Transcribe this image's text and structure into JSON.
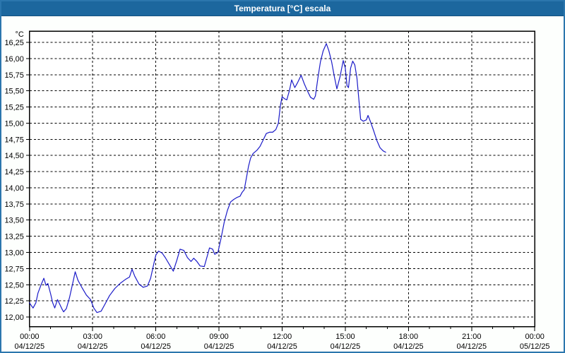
{
  "window": {
    "title": "Temperatura [°C] escala"
  },
  "colors": {
    "titlebar_bg": "#1c679e",
    "titlebar_text": "#ffffff",
    "window_border": "#2b76ad",
    "background": "#fdfffd",
    "plot_background": "#ffffff",
    "grid": "#000000",
    "frame": "#000000",
    "tick_text": "#000000",
    "line": "#1a1ac8"
  },
  "chart_data": {
    "type": "line",
    "title": "Temperatura [°C] escala",
    "legend_position": "none",
    "grid": "dashed",
    "y_axis": {
      "unit_label": "°C",
      "decimal_separator": ",",
      "view_min": 11.85,
      "view_max": 16.43,
      "tick_step": 0.25,
      "tick_values": [
        16.25,
        16.0,
        15.75,
        15.5,
        15.25,
        15.0,
        14.75,
        14.5,
        14.25,
        14.0,
        13.75,
        13.5,
        13.25,
        13.0,
        12.75,
        12.5,
        12.25,
        12.0
      ],
      "tick_labels": [
        "16,25",
        "16,00",
        "15,75",
        "15,50",
        "15,25",
        "15,00",
        "14,75",
        "14,50",
        "14,25",
        "14,00",
        "13,75",
        "13,50",
        "13,25",
        "13,00",
        "12,75",
        "12,50",
        "12,25",
        "12,00"
      ]
    },
    "x_axis": {
      "range_hours": [
        0,
        24
      ],
      "minor_tick_every_hours": 1,
      "tick_hours": [
        0,
        3,
        6,
        9,
        12,
        15,
        18,
        21,
        24
      ],
      "tick_times": [
        "00:00",
        "03:00",
        "06:00",
        "09:00",
        "12:00",
        "15:00",
        "18:00",
        "21:00",
        "00:00"
      ],
      "tick_dates": [
        "04/12/25",
        "04/12/25",
        "04/12/25",
        "04/12/25",
        "04/12/25",
        "04/12/25",
        "04/12/25",
        "04/12/25",
        "05/12/25"
      ]
    },
    "series": [
      {
        "name": "Temperatura",
        "unit": "°C",
        "color": "#1a1ac8",
        "points_format": [
          "hour_decimal",
          "temp_c"
        ],
        "points": [
          [
            0.0,
            12.22
          ],
          [
            0.1,
            12.17
          ],
          [
            0.17,
            12.14
          ],
          [
            0.3,
            12.22
          ],
          [
            0.4,
            12.37
          ],
          [
            0.55,
            12.5
          ],
          [
            0.68,
            12.6
          ],
          [
            0.78,
            12.49
          ],
          [
            0.87,
            12.52
          ],
          [
            1.0,
            12.36
          ],
          [
            1.1,
            12.22
          ],
          [
            1.2,
            12.14
          ],
          [
            1.33,
            12.27
          ],
          [
            1.42,
            12.21
          ],
          [
            1.55,
            12.12
          ],
          [
            1.62,
            12.08
          ],
          [
            1.75,
            12.13
          ],
          [
            1.9,
            12.3
          ],
          [
            2.05,
            12.52
          ],
          [
            2.17,
            12.7
          ],
          [
            2.3,
            12.57
          ],
          [
            2.5,
            12.45
          ],
          [
            2.7,
            12.34
          ],
          [
            2.9,
            12.27
          ],
          [
            3.05,
            12.14
          ],
          [
            3.2,
            12.07
          ],
          [
            3.4,
            12.09
          ],
          [
            3.6,
            12.21
          ],
          [
            3.8,
            12.33
          ],
          [
            4.05,
            12.44
          ],
          [
            4.3,
            12.52
          ],
          [
            4.55,
            12.58
          ],
          [
            4.75,
            12.62
          ],
          [
            4.87,
            12.74
          ],
          [
            5.0,
            12.63
          ],
          [
            5.2,
            12.51
          ],
          [
            5.4,
            12.46
          ],
          [
            5.6,
            12.48
          ],
          [
            5.75,
            12.6
          ],
          [
            5.9,
            12.82
          ],
          [
            6.0,
            12.96
          ],
          [
            6.13,
            13.02
          ],
          [
            6.3,
            12.99
          ],
          [
            6.45,
            12.92
          ],
          [
            6.65,
            12.81
          ],
          [
            6.83,
            12.71
          ],
          [
            7.0,
            12.88
          ],
          [
            7.15,
            13.05
          ],
          [
            7.33,
            13.03
          ],
          [
            7.5,
            12.92
          ],
          [
            7.67,
            12.86
          ],
          [
            7.8,
            12.91
          ],
          [
            7.95,
            12.86
          ],
          [
            8.1,
            12.79
          ],
          [
            8.3,
            12.78
          ],
          [
            8.45,
            12.95
          ],
          [
            8.55,
            13.07
          ],
          [
            8.7,
            13.05
          ],
          [
            8.8,
            12.97
          ],
          [
            8.95,
            13.0
          ],
          [
            9.1,
            13.22
          ],
          [
            9.25,
            13.47
          ],
          [
            9.4,
            13.65
          ],
          [
            9.55,
            13.78
          ],
          [
            9.7,
            13.82
          ],
          [
            9.85,
            13.85
          ],
          [
            10.0,
            13.87
          ],
          [
            10.1,
            13.93
          ],
          [
            10.2,
            13.97
          ],
          [
            10.3,
            14.15
          ],
          [
            10.4,
            14.33
          ],
          [
            10.5,
            14.46
          ],
          [
            10.62,
            14.53
          ],
          [
            10.8,
            14.58
          ],
          [
            10.95,
            14.64
          ],
          [
            11.1,
            14.74
          ],
          [
            11.25,
            14.84
          ],
          [
            11.4,
            14.86
          ],
          [
            11.55,
            14.86
          ],
          [
            11.7,
            14.9
          ],
          [
            11.82,
            15.0
          ],
          [
            11.92,
            15.28
          ],
          [
            12.0,
            15.41
          ],
          [
            12.1,
            15.38
          ],
          [
            12.22,
            15.36
          ],
          [
            12.35,
            15.51
          ],
          [
            12.45,
            15.67
          ],
          [
            12.6,
            15.55
          ],
          [
            12.72,
            15.62
          ],
          [
            12.9,
            15.74
          ],
          [
            13.05,
            15.61
          ],
          [
            13.2,
            15.5
          ],
          [
            13.35,
            15.4
          ],
          [
            13.5,
            15.37
          ],
          [
            13.58,
            15.42
          ],
          [
            13.7,
            15.7
          ],
          [
            13.82,
            15.95
          ],
          [
            13.95,
            16.12
          ],
          [
            14.1,
            16.23
          ],
          [
            14.22,
            16.12
          ],
          [
            14.35,
            15.95
          ],
          [
            14.48,
            15.72
          ],
          [
            14.6,
            15.53
          ],
          [
            14.75,
            15.72
          ],
          [
            14.9,
            15.97
          ],
          [
            15.0,
            15.85
          ],
          [
            15.08,
            15.58
          ],
          [
            15.15,
            15.55
          ],
          [
            15.25,
            15.85
          ],
          [
            15.35,
            15.96
          ],
          [
            15.45,
            15.9
          ],
          [
            15.55,
            15.7
          ],
          [
            15.65,
            15.35
          ],
          [
            15.73,
            15.06
          ],
          [
            15.85,
            15.03
          ],
          [
            16.0,
            15.05
          ],
          [
            16.08,
            15.12
          ],
          [
            16.2,
            15.02
          ],
          [
            16.35,
            14.88
          ],
          [
            16.5,
            14.73
          ],
          [
            16.65,
            14.62
          ],
          [
            16.8,
            14.57
          ],
          [
            16.92,
            14.55
          ]
        ]
      }
    ]
  }
}
